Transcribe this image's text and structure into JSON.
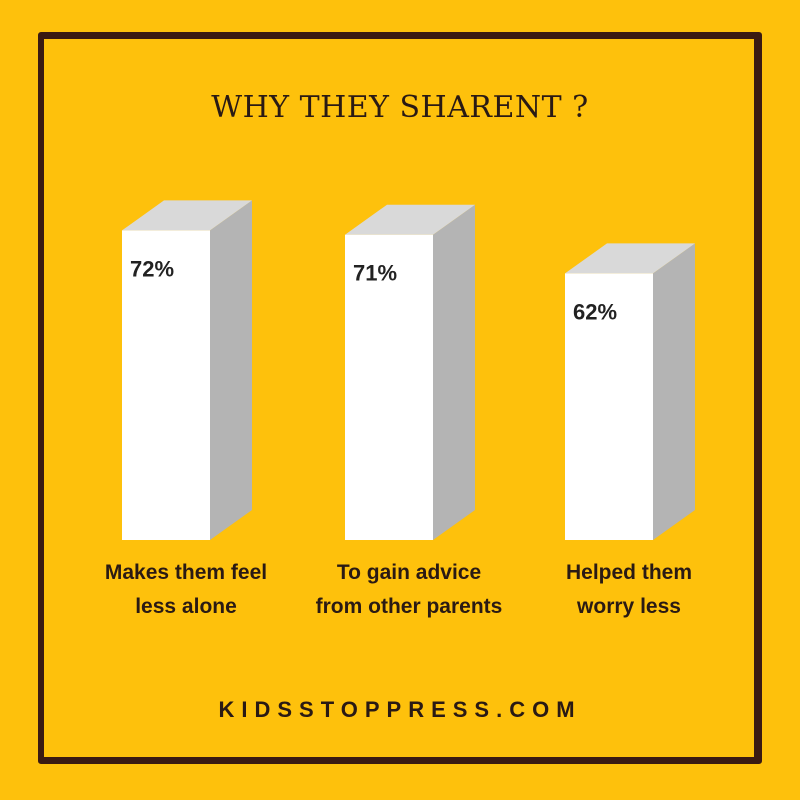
{
  "colors": {
    "background": "#FEC10C",
    "frame": "#3A1A12",
    "text": "#2A1A14",
    "bar_front": "#FFFFFF",
    "bar_top": "#D9D9D9",
    "bar_side": "#B4B4B4",
    "value_text": "#222222"
  },
  "title": "WHY THEY SHARENT ?",
  "footer": "KIDSSTOPPRESS.COM",
  "chart_data": {
    "type": "bar",
    "title": "WHY THEY SHARENT ?",
    "categories": [
      [
        "Makes them feel",
        "less alone"
      ],
      [
        "To gain advice",
        "from other parents"
      ],
      [
        "Helped them",
        "worry less"
      ]
    ],
    "values": [
      72,
      71,
      62
    ],
    "value_labels": [
      "72%",
      "71%",
      "62%"
    ],
    "unit": "%",
    "grid": false
  }
}
